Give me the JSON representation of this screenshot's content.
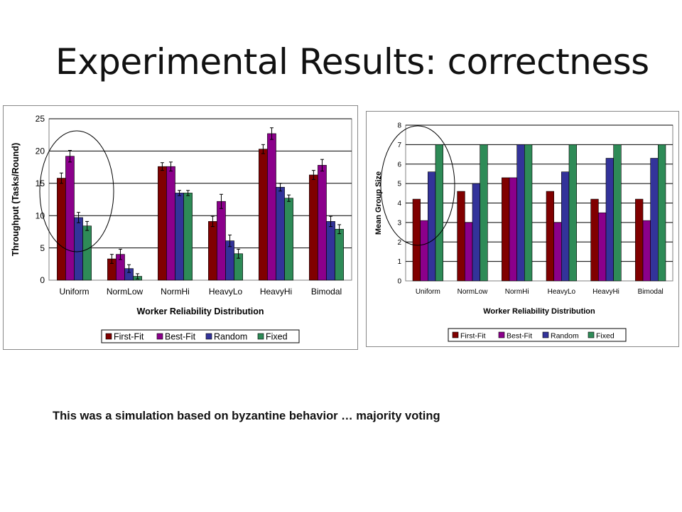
{
  "slide": {
    "title": "Experimental Results: correctness",
    "caption": "This was a simulation based on byzantine behavior … majority voting"
  },
  "colors": {
    "First-Fit": "#800000",
    "Best-Fit": "#8b008b",
    "Random": "#33339a",
    "Fixed": "#2e8b57"
  },
  "chart_data": [
    {
      "type": "bar",
      "title": "",
      "xlabel": "Worker Reliability Distribution",
      "ylabel": "Throughput (Tasks/Round)",
      "ylim": [
        0,
        25
      ],
      "yticks": [
        0,
        5,
        10,
        15,
        20,
        25
      ],
      "grid": true,
      "error_bars": true,
      "legend": "bottom",
      "categories": [
        "Uniform",
        "NormLow",
        "NormHi",
        "HeavyLo",
        "HeavyHi",
        "Bimodal"
      ],
      "series": [
        {
          "name": "First-Fit",
          "values": [
            15.8,
            3.3,
            17.6,
            9.1,
            20.3,
            16.3
          ],
          "errors": [
            0.8,
            0.7,
            0.6,
            0.8,
            0.7,
            0.7
          ]
        },
        {
          "name": "Best-Fit",
          "values": [
            19.2,
            4.0,
            17.6,
            12.2,
            22.7,
            17.8
          ],
          "errors": [
            0.9,
            0.8,
            0.7,
            1.1,
            0.9,
            0.9
          ]
        },
        {
          "name": "Random",
          "values": [
            9.7,
            1.8,
            13.5,
            6.1,
            14.4,
            9.1
          ],
          "errors": [
            0.8,
            0.6,
            0.4,
            0.9,
            0.6,
            0.8
          ]
        },
        {
          "name": "Fixed",
          "values": [
            8.4,
            0.6,
            13.5,
            4.1,
            12.7,
            7.9
          ],
          "errors": [
            0.7,
            0.4,
            0.4,
            0.7,
            0.5,
            0.7
          ]
        }
      ]
    },
    {
      "type": "bar",
      "title": "",
      "xlabel": "Worker Reliability Distribution",
      "ylabel": "Mean Group Size",
      "ylim": [
        0,
        8
      ],
      "yticks": [
        0,
        1,
        2,
        3,
        4,
        5,
        6,
        7,
        8
      ],
      "grid": true,
      "error_bars": false,
      "legend": "bottom",
      "categories": [
        "Uniform",
        "NormLow",
        "NormHi",
        "HeavyLo",
        "HeavyHi",
        "Bimodal"
      ],
      "series": [
        {
          "name": "First-Fit",
          "values": [
            4.2,
            4.6,
            5.3,
            4.6,
            4.2,
            4.2
          ]
        },
        {
          "name": "Best-Fit",
          "values": [
            3.1,
            3.0,
            5.3,
            3.0,
            3.5,
            3.1
          ]
        },
        {
          "name": "Random",
          "values": [
            5.6,
            5.0,
            7.0,
            5.6,
            6.3,
            6.3
          ]
        },
        {
          "name": "Fixed",
          "values": [
            7.0,
            7.0,
            7.0,
            7.0,
            7.0,
            7.0
          ]
        }
      ]
    }
  ]
}
